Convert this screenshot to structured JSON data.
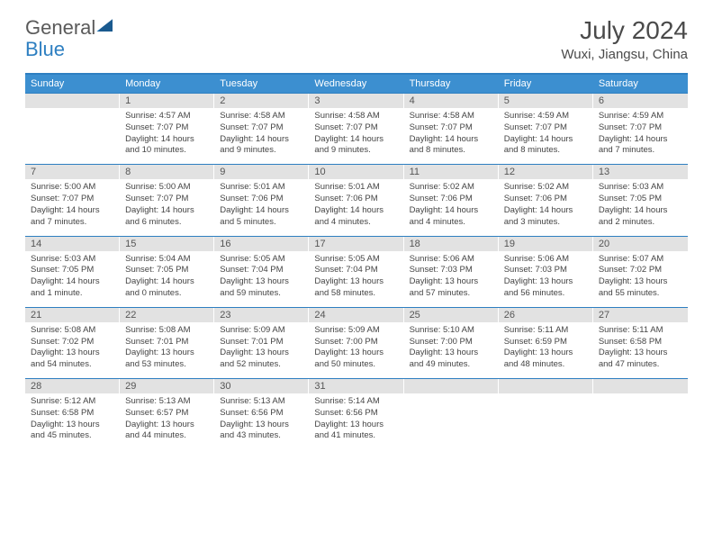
{
  "logo": {
    "part1": "General",
    "part2": "Blue"
  },
  "title": "July 2024",
  "location": "Wuxi, Jiangsu, China",
  "colors": {
    "accent": "#2e7fc1",
    "header_bg": "#3c8fd0",
    "daynum_bg": "#e2e2e2"
  },
  "day_headers": [
    "Sunday",
    "Monday",
    "Tuesday",
    "Wednesday",
    "Thursday",
    "Friday",
    "Saturday"
  ],
  "weeks": [
    [
      {
        "n": "",
        "sr": "",
        "ss": "",
        "dl": ""
      },
      {
        "n": "1",
        "sr": "Sunrise: 4:57 AM",
        "ss": "Sunset: 7:07 PM",
        "dl": "Daylight: 14 hours and 10 minutes."
      },
      {
        "n": "2",
        "sr": "Sunrise: 4:58 AM",
        "ss": "Sunset: 7:07 PM",
        "dl": "Daylight: 14 hours and 9 minutes."
      },
      {
        "n": "3",
        "sr": "Sunrise: 4:58 AM",
        "ss": "Sunset: 7:07 PM",
        "dl": "Daylight: 14 hours and 9 minutes."
      },
      {
        "n": "4",
        "sr": "Sunrise: 4:58 AM",
        "ss": "Sunset: 7:07 PM",
        "dl": "Daylight: 14 hours and 8 minutes."
      },
      {
        "n": "5",
        "sr": "Sunrise: 4:59 AM",
        "ss": "Sunset: 7:07 PM",
        "dl": "Daylight: 14 hours and 8 minutes."
      },
      {
        "n": "6",
        "sr": "Sunrise: 4:59 AM",
        "ss": "Sunset: 7:07 PM",
        "dl": "Daylight: 14 hours and 7 minutes."
      }
    ],
    [
      {
        "n": "7",
        "sr": "Sunrise: 5:00 AM",
        "ss": "Sunset: 7:07 PM",
        "dl": "Daylight: 14 hours and 7 minutes."
      },
      {
        "n": "8",
        "sr": "Sunrise: 5:00 AM",
        "ss": "Sunset: 7:07 PM",
        "dl": "Daylight: 14 hours and 6 minutes."
      },
      {
        "n": "9",
        "sr": "Sunrise: 5:01 AM",
        "ss": "Sunset: 7:06 PM",
        "dl": "Daylight: 14 hours and 5 minutes."
      },
      {
        "n": "10",
        "sr": "Sunrise: 5:01 AM",
        "ss": "Sunset: 7:06 PM",
        "dl": "Daylight: 14 hours and 4 minutes."
      },
      {
        "n": "11",
        "sr": "Sunrise: 5:02 AM",
        "ss": "Sunset: 7:06 PM",
        "dl": "Daylight: 14 hours and 4 minutes."
      },
      {
        "n": "12",
        "sr": "Sunrise: 5:02 AM",
        "ss": "Sunset: 7:06 PM",
        "dl": "Daylight: 14 hours and 3 minutes."
      },
      {
        "n": "13",
        "sr": "Sunrise: 5:03 AM",
        "ss": "Sunset: 7:05 PM",
        "dl": "Daylight: 14 hours and 2 minutes."
      }
    ],
    [
      {
        "n": "14",
        "sr": "Sunrise: 5:03 AM",
        "ss": "Sunset: 7:05 PM",
        "dl": "Daylight: 14 hours and 1 minute."
      },
      {
        "n": "15",
        "sr": "Sunrise: 5:04 AM",
        "ss": "Sunset: 7:05 PM",
        "dl": "Daylight: 14 hours and 0 minutes."
      },
      {
        "n": "16",
        "sr": "Sunrise: 5:05 AM",
        "ss": "Sunset: 7:04 PM",
        "dl": "Daylight: 13 hours and 59 minutes."
      },
      {
        "n": "17",
        "sr": "Sunrise: 5:05 AM",
        "ss": "Sunset: 7:04 PM",
        "dl": "Daylight: 13 hours and 58 minutes."
      },
      {
        "n": "18",
        "sr": "Sunrise: 5:06 AM",
        "ss": "Sunset: 7:03 PM",
        "dl": "Daylight: 13 hours and 57 minutes."
      },
      {
        "n": "19",
        "sr": "Sunrise: 5:06 AM",
        "ss": "Sunset: 7:03 PM",
        "dl": "Daylight: 13 hours and 56 minutes."
      },
      {
        "n": "20",
        "sr": "Sunrise: 5:07 AM",
        "ss": "Sunset: 7:02 PM",
        "dl": "Daylight: 13 hours and 55 minutes."
      }
    ],
    [
      {
        "n": "21",
        "sr": "Sunrise: 5:08 AM",
        "ss": "Sunset: 7:02 PM",
        "dl": "Daylight: 13 hours and 54 minutes."
      },
      {
        "n": "22",
        "sr": "Sunrise: 5:08 AM",
        "ss": "Sunset: 7:01 PM",
        "dl": "Daylight: 13 hours and 53 minutes."
      },
      {
        "n": "23",
        "sr": "Sunrise: 5:09 AM",
        "ss": "Sunset: 7:01 PM",
        "dl": "Daylight: 13 hours and 52 minutes."
      },
      {
        "n": "24",
        "sr": "Sunrise: 5:09 AM",
        "ss": "Sunset: 7:00 PM",
        "dl": "Daylight: 13 hours and 50 minutes."
      },
      {
        "n": "25",
        "sr": "Sunrise: 5:10 AM",
        "ss": "Sunset: 7:00 PM",
        "dl": "Daylight: 13 hours and 49 minutes."
      },
      {
        "n": "26",
        "sr": "Sunrise: 5:11 AM",
        "ss": "Sunset: 6:59 PM",
        "dl": "Daylight: 13 hours and 48 minutes."
      },
      {
        "n": "27",
        "sr": "Sunrise: 5:11 AM",
        "ss": "Sunset: 6:58 PM",
        "dl": "Daylight: 13 hours and 47 minutes."
      }
    ],
    [
      {
        "n": "28",
        "sr": "Sunrise: 5:12 AM",
        "ss": "Sunset: 6:58 PM",
        "dl": "Daylight: 13 hours and 45 minutes."
      },
      {
        "n": "29",
        "sr": "Sunrise: 5:13 AM",
        "ss": "Sunset: 6:57 PM",
        "dl": "Daylight: 13 hours and 44 minutes."
      },
      {
        "n": "30",
        "sr": "Sunrise: 5:13 AM",
        "ss": "Sunset: 6:56 PM",
        "dl": "Daylight: 13 hours and 43 minutes."
      },
      {
        "n": "31",
        "sr": "Sunrise: 5:14 AM",
        "ss": "Sunset: 6:56 PM",
        "dl": "Daylight: 13 hours and 41 minutes."
      },
      {
        "n": "",
        "sr": "",
        "ss": "",
        "dl": ""
      },
      {
        "n": "",
        "sr": "",
        "ss": "",
        "dl": ""
      },
      {
        "n": "",
        "sr": "",
        "ss": "",
        "dl": ""
      }
    ]
  ]
}
